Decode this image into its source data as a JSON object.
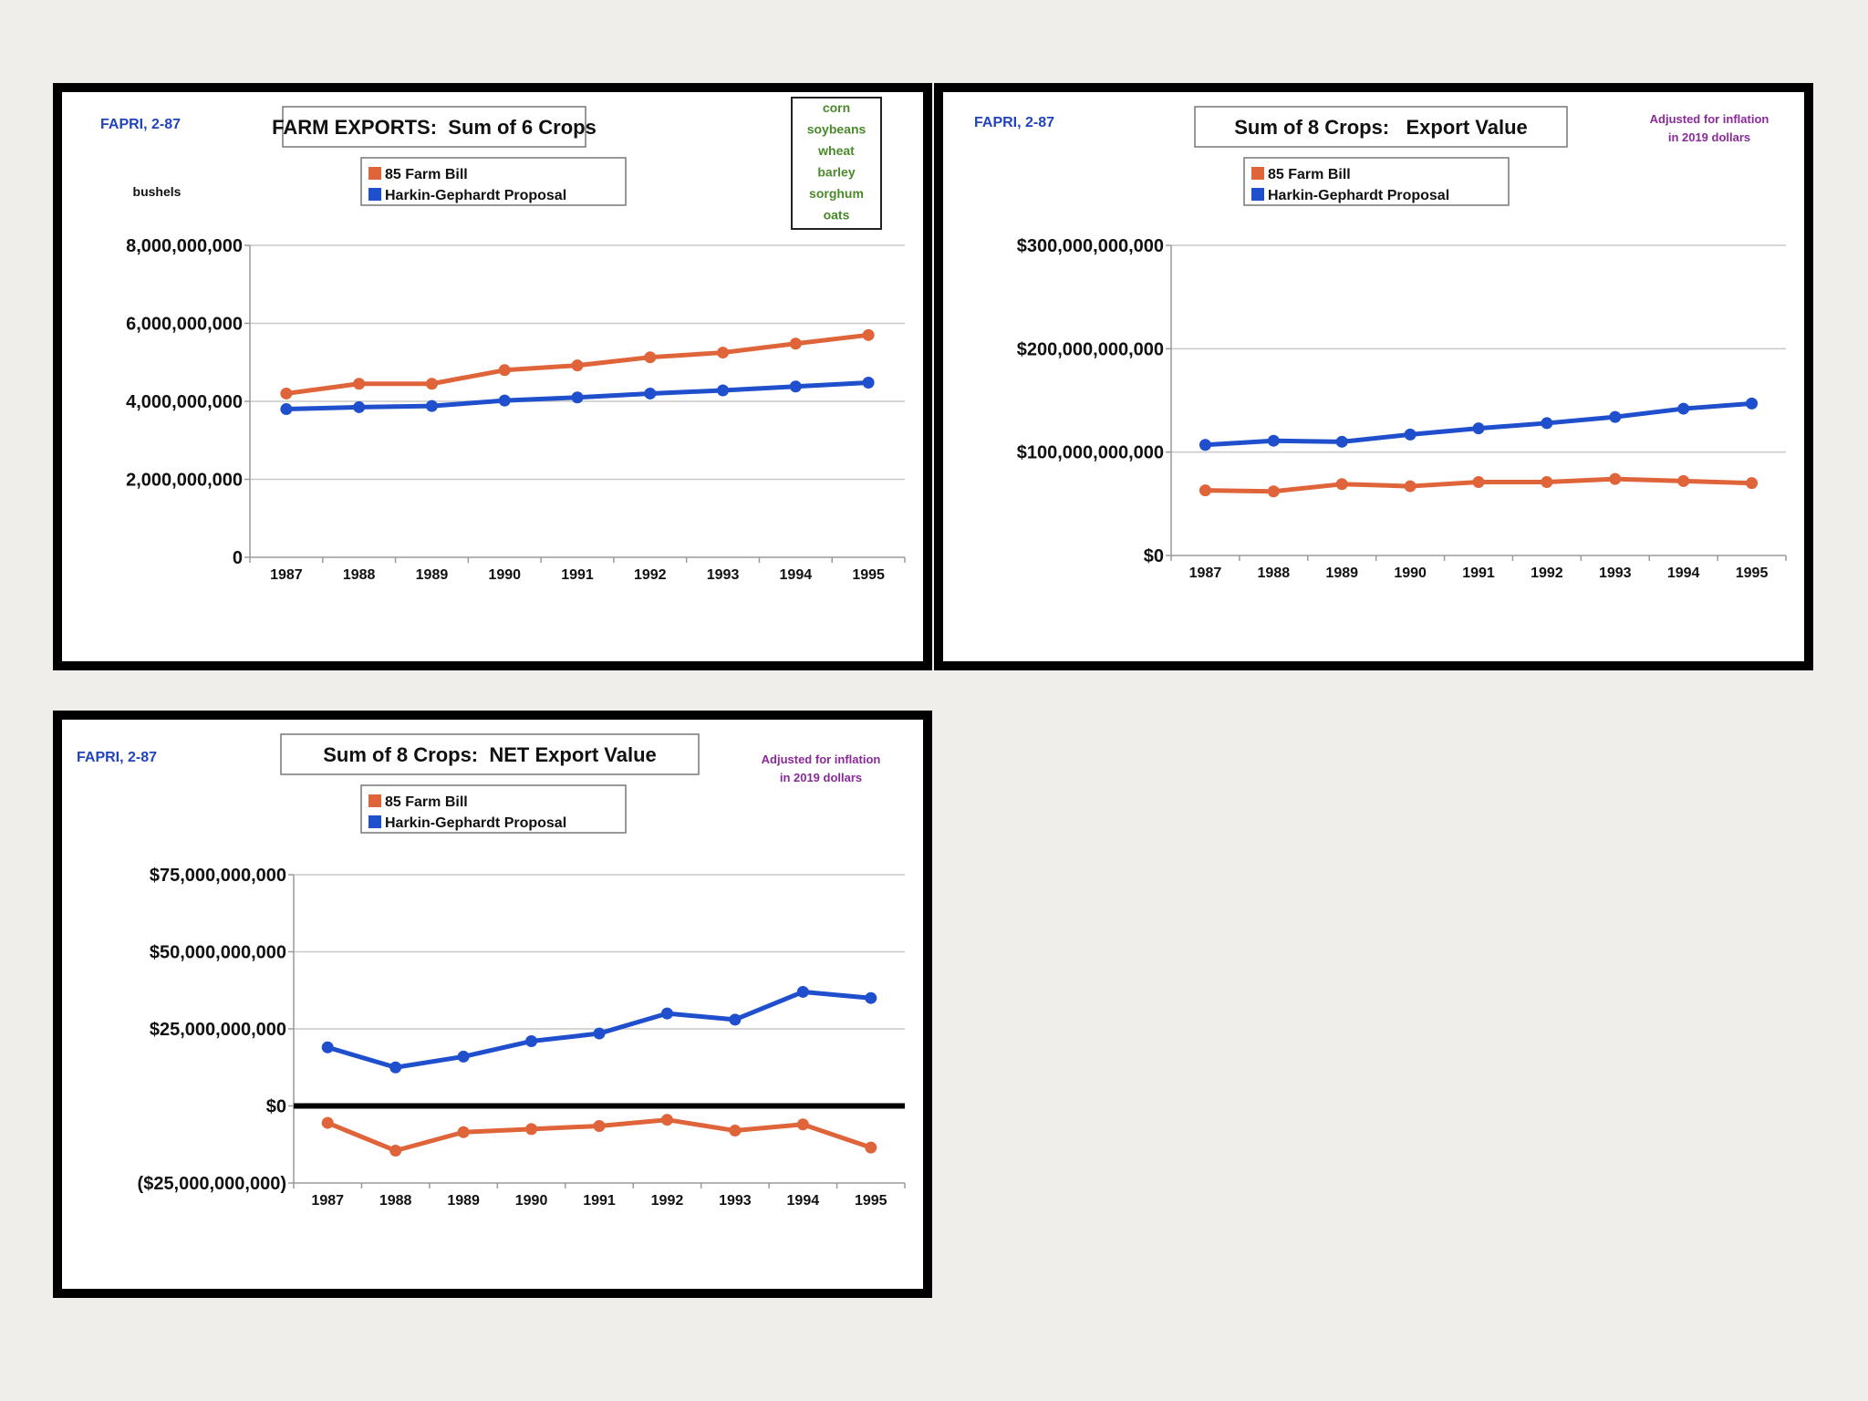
{
  "colors": {
    "farm_bill": "#e0643a",
    "harkin": "#1f4fcc",
    "source": "#2244bb",
    "crops": "#4a8a2a",
    "note": "#8a2a9a",
    "grid": "#c9c9c9",
    "axis": "#9a9a9a"
  },
  "chart_data": [
    {
      "type": "line",
      "title": "FARM EXPORTS:  Sum of 6 Crops",
      "source": "FAPRI, 2-87",
      "ylabel": "bushels",
      "crops": [
        "corn",
        "soybeans",
        "wheat",
        "barley",
        "sorghum",
        "oats"
      ],
      "categories": [
        "1987",
        "1988",
        "1989",
        "1990",
        "1991",
        "1992",
        "1993",
        "1994",
        "1995"
      ],
      "ylim": [
        0,
        8000000000
      ],
      "yticks": [
        0,
        2000000000,
        4000000000,
        6000000000,
        8000000000
      ],
      "ytick_labels": [
        "0",
        "2,000,000,000",
        "4,000,000,000",
        "6,000,000,000",
        "8,000,000,000"
      ],
      "series": [
        {
          "name": "85 Farm Bill",
          "color_key": "farm_bill",
          "values": [
            4200000000,
            4450000000,
            4450000000,
            4800000000,
            4920000000,
            5130000000,
            5250000000,
            5480000000,
            5700000000
          ]
        },
        {
          "name": "Harkin-Gephardt Proposal",
          "color_key": "harkin",
          "values": [
            3800000000,
            3850000000,
            3880000000,
            4020000000,
            4100000000,
            4200000000,
            4280000000,
            4380000000,
            4480000000
          ]
        }
      ]
    },
    {
      "type": "line",
      "title": "Sum of 8 Crops:   Export Value",
      "source": "FAPRI, 2-87",
      "note": [
        "Adjusted for inflation",
        "in 2019 dollars"
      ],
      "categories": [
        "1987",
        "1988",
        "1989",
        "1990",
        "1991",
        "1992",
        "1993",
        "1994",
        "1995"
      ],
      "ylim": [
        0,
        300000000000
      ],
      "yticks": [
        0,
        100000000000,
        200000000000,
        300000000000
      ],
      "ytick_labels": [
        "$0",
        "$100,000,000,000",
        "$200,000,000,000",
        "$300,000,000,000"
      ],
      "series": [
        {
          "name": "85 Farm Bill",
          "color_key": "farm_bill",
          "values": [
            63000000000,
            62000000000,
            69000000000,
            67000000000,
            71000000000,
            71000000000,
            74000000000,
            72000000000,
            70000000000
          ]
        },
        {
          "name": "Harkin-Gephardt Proposal",
          "color_key": "harkin",
          "values": [
            107000000000,
            111000000000,
            110000000000,
            117000000000,
            123000000000,
            128000000000,
            134000000000,
            142000000000,
            147000000000
          ]
        }
      ]
    },
    {
      "type": "line",
      "title": "Sum of 8 Crops:  NET Export Value",
      "source": "FAPRI, 2-87",
      "note": [
        "Adjusted for inflation",
        "in 2019 dollars"
      ],
      "categories": [
        "1987",
        "1988",
        "1989",
        "1990",
        "1991",
        "1992",
        "1993",
        "1994",
        "1995"
      ],
      "ylim": [
        -25000000000,
        75000000000
      ],
      "yticks": [
        -25000000000,
        0,
        25000000000,
        50000000000,
        75000000000
      ],
      "ytick_labels": [
        "($25,000,000,000)",
        "$0",
        "$25,000,000,000",
        "$50,000,000,000",
        "$75,000,000,000"
      ],
      "zero_line": true,
      "series": [
        {
          "name": "85 Farm Bill",
          "color_key": "farm_bill",
          "values": [
            -5500000000,
            -14500000000,
            -8500000000,
            -7500000000,
            -6500000000,
            -4500000000,
            -8000000000,
            -6000000000,
            -13500000000
          ]
        },
        {
          "name": "Harkin-Gephardt Proposal",
          "color_key": "harkin",
          "values": [
            19000000000,
            12500000000,
            16000000000,
            21000000000,
            23500000000,
            30000000000,
            28000000000,
            37000000000,
            35000000000
          ]
        }
      ]
    }
  ]
}
